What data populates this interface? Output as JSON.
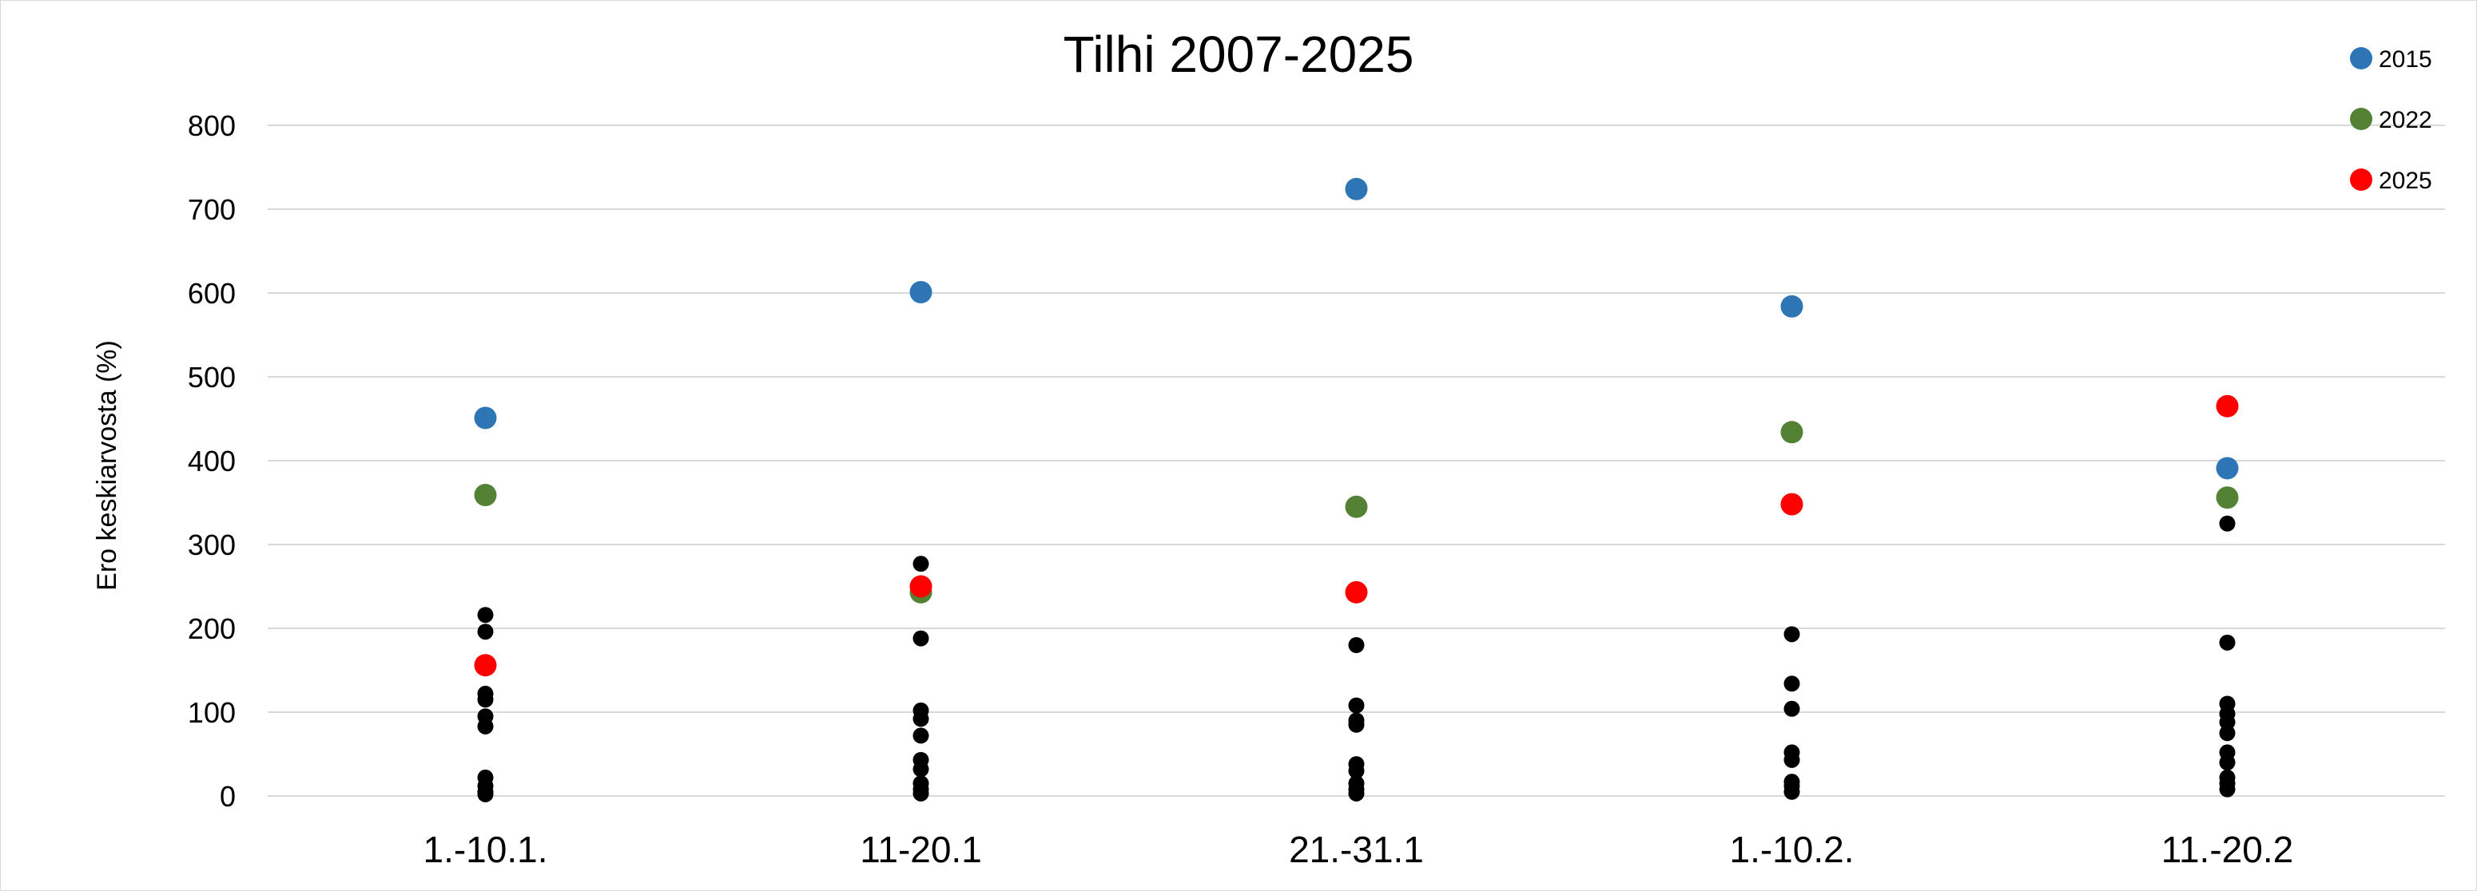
{
  "chart_data": {
    "type": "scatter",
    "title": "Tilhi 2007-2025",
    "ylabel": "Ero keskiarvosta (%)",
    "xlabel": "",
    "ylim": [
      0,
      800
    ],
    "yticks": [
      0,
      100,
      200,
      300,
      400,
      500,
      600,
      700,
      800
    ],
    "grid": true,
    "legend_position": "top-right",
    "categories": [
      "1.-10.1.",
      "11-20.1",
      "21.-31.1",
      "1.-10.2.",
      "11.-20.2"
    ],
    "background_points": {
      "color": "#000000",
      "values": [
        [
          216,
          196,
          122,
          115,
          95,
          83,
          22,
          12,
          5,
          2
        ],
        [
          277,
          188,
          102,
          92,
          72,
          43,
          32,
          15,
          8,
          3
        ],
        [
          180,
          108,
          90,
          85,
          38,
          30,
          15,
          8,
          3
        ],
        [
          193,
          134,
          104,
          52,
          43,
          17,
          12,
          5
        ],
        [
          325,
          183,
          110,
          98,
          88,
          75,
          52,
          40,
          22,
          15,
          8
        ]
      ]
    },
    "series": [
      {
        "name": "2015",
        "color": "#2e75b6",
        "values": [
          451,
          601,
          724,
          584,
          391
        ]
      },
      {
        "name": "2022",
        "color": "#548235",
        "values": [
          359,
          243,
          345,
          434,
          356
        ]
      },
      {
        "name": "2025",
        "color": "#ff0000",
        "values": [
          156,
          250,
          243,
          348,
          465
        ]
      }
    ]
  }
}
